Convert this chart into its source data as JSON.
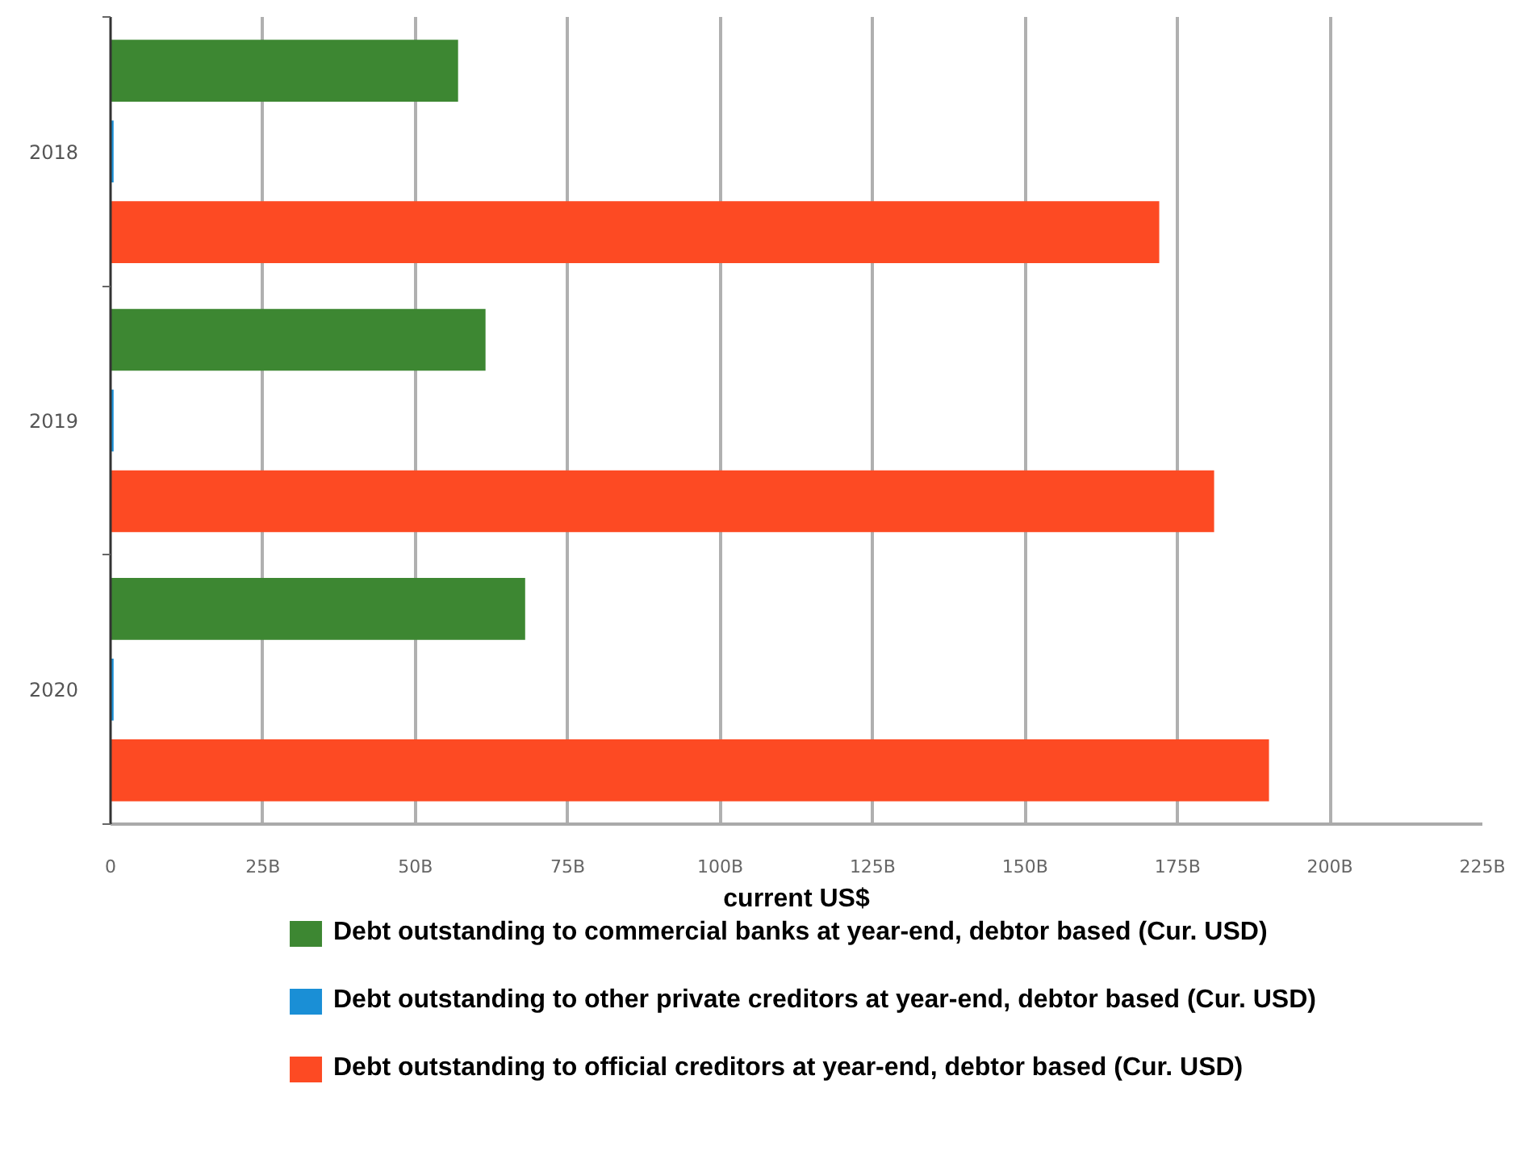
{
  "chart_data": {
    "type": "bar",
    "orientation": "horizontal",
    "categories": [
      "2018",
      "2019",
      "2020"
    ],
    "series": [
      {
        "name": "Debt outstanding to commercial banks at year-end, debtor based (Cur. USD)",
        "color": "#3d8732",
        "values": [
          57,
          61.5,
          68
        ]
      },
      {
        "name": "Debt outstanding to other private creditors at year-end, debtor based (Cur. USD)",
        "color": "#1a8fd6",
        "values": [
          0.5,
          0.5,
          0.5
        ]
      },
      {
        "name": "Debt outstanding to official creditors at year-end, debtor based (Cur. USD)",
        "color": "#fd4a23",
        "values": [
          172,
          181,
          190
        ]
      }
    ],
    "xlabel": "current US$",
    "xlim": [
      0,
      225
    ],
    "xticks": [
      0,
      {
        "value": 25,
        "label": "25B"
      },
      {
        "value": 50,
        "label": "50B"
      },
      {
        "value": 75,
        "label": "75B"
      },
      {
        "value": 100,
        "label": "100B"
      },
      {
        "value": 125,
        "label": "125B"
      },
      {
        "value": 150,
        "label": "150B"
      },
      {
        "value": 175,
        "label": "175B"
      },
      {
        "value": 200,
        "label": "200B"
      },
      {
        "value": 225,
        "label": "225B"
      }
    ],
    "grid": "x",
    "legend": "bottom"
  }
}
